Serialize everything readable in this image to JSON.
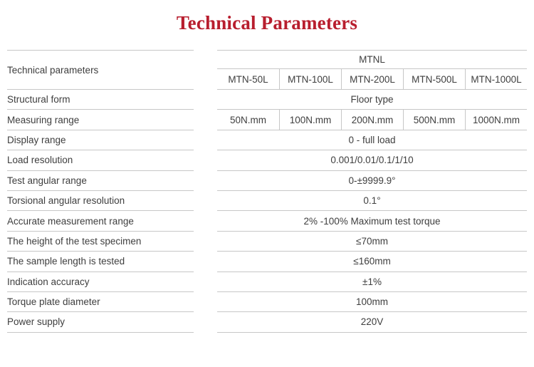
{
  "page": {
    "title": "Technical Parameters"
  },
  "colors": {
    "title": "#b81e2e",
    "text": "#3e3e3e",
    "border": "#c7c7c7",
    "background": "#ffffff"
  },
  "table": {
    "corner_label": "Technical parameters",
    "group_header": "MTNL",
    "model_headers": [
      "MTN-50L",
      "MTN-100L",
      "MTN-200L",
      "MTN-500L",
      "MTN-1000L"
    ],
    "rows": [
      {
        "label": "Structural form",
        "type": "span",
        "value": "Floor type"
      },
      {
        "label": "Measuring range",
        "type": "cells",
        "values": [
          "50N.mm",
          "100N.mm",
          "200N.mm",
          "500N.mm",
          "1000N.mm"
        ]
      },
      {
        "label": "Display range",
        "type": "span",
        "value": "0 - full load"
      },
      {
        "label": "Load resolution",
        "type": "span",
        "value": "0.001/0.01/0.1/1/10"
      },
      {
        "label": "Test angular range",
        "type": "span",
        "value": "0-±9999.9°"
      },
      {
        "label": "Torsional angular resolution",
        "type": "span",
        "value": "0.1°"
      },
      {
        "label": "Accurate measurement range",
        "type": "span",
        "value": "2% -100% Maximum test torque"
      },
      {
        "label": "The height of the test specimen",
        "type": "span",
        "value": "≤70mm"
      },
      {
        "label": "The sample length is tested",
        "type": "span",
        "value": "≤160mm"
      },
      {
        "label": "Indication accuracy",
        "type": "span",
        "value": "±1%"
      },
      {
        "label": "Torque plate diameter",
        "type": "span",
        "value": "100mm"
      },
      {
        "label": "Power supply",
        "type": "span",
        "value": "220V"
      }
    ]
  }
}
